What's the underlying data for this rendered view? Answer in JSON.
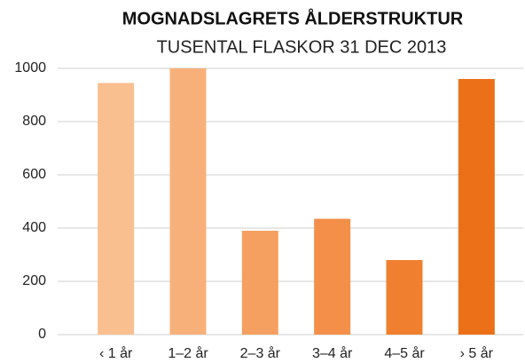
{
  "chart_data": {
    "type": "bar",
    "title": "MOGNADSLAGRETS ÅLDERSTRUKTUR",
    "subtitle": "TUSENTAL FLASKOR 31 DEC 2013",
    "categories": [
      "‹ 1 år",
      "1–2 år",
      "2–3 år",
      "3–4 år",
      "4–5 år",
      "› 5 år"
    ],
    "values": [
      945,
      1000,
      390,
      435,
      280,
      960
    ],
    "colors": [
      "#f9bf8f",
      "#f8b07a",
      "#f5a060",
      "#f38f48",
      "#f08030",
      "#ec7018"
    ],
    "ylim": [
      0,
      1000
    ],
    "yticks": [
      0,
      200,
      400,
      600,
      800,
      1000
    ],
    "grid": true
  }
}
